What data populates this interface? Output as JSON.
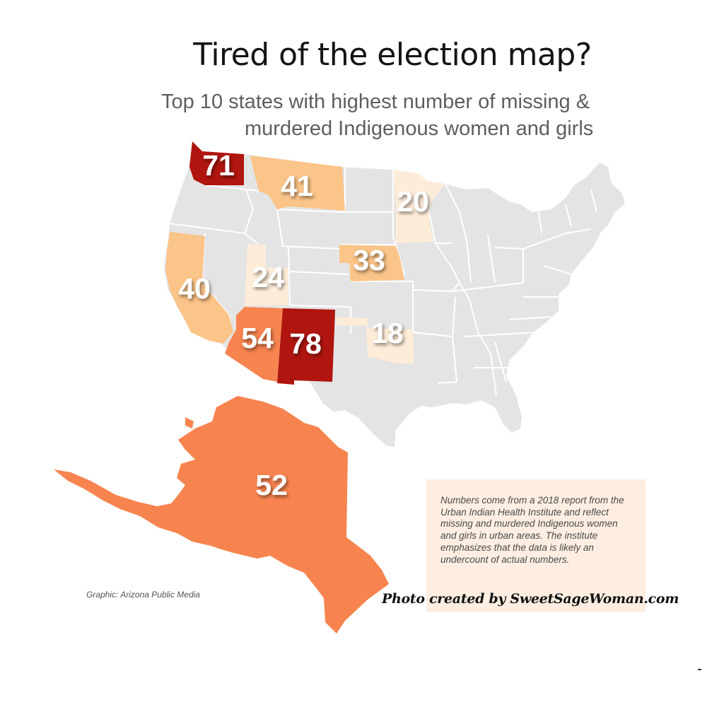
{
  "title": "Tired of the election map?",
  "subtitle": {
    "line1": "Top 10 states with highest number of missing &",
    "line2": "murdered Indigenous women and girls"
  },
  "colors": {
    "base_state": "#e4e4e4",
    "border": "#ffffff",
    "lightest": "#fdecd8",
    "light": "#fbc488",
    "medium": "#f7844f",
    "dark": "#b0150f",
    "note_background": "#fdeee1"
  },
  "states": [
    {
      "name": "Washington",
      "value": "71",
      "color": "#b0150f"
    },
    {
      "name": "Montana",
      "value": "41",
      "color": "#fbc488"
    },
    {
      "name": "Minnesota",
      "value": "20",
      "color": "#fdecd8"
    },
    {
      "name": "Nebraska",
      "value": "33",
      "color": "#fbc488"
    },
    {
      "name": "Utah",
      "value": "24",
      "color": "#fdecd8"
    },
    {
      "name": "California",
      "value": "40",
      "color": "#fbc488"
    },
    {
      "name": "Arizona",
      "value": "54",
      "color": "#f7844f"
    },
    {
      "name": "New Mexico",
      "value": "78",
      "color": "#b0150f"
    },
    {
      "name": "Oklahoma",
      "value": "18",
      "color": "#fdecd8"
    },
    {
      "name": "Alaska",
      "value": "52",
      "color": "#f7844f"
    }
  ],
  "note": "Numbers come from a 2018 report from the Urban Indian Health Institute and reflect missing and murdered Indigenous women and girls in urban areas. The institute emphasizes that the data is likely an undercount of actual numbers.",
  "credit": "Graphic: Arizona Public Media",
  "watermark": "Photo created by SweetSageWoman.com"
}
